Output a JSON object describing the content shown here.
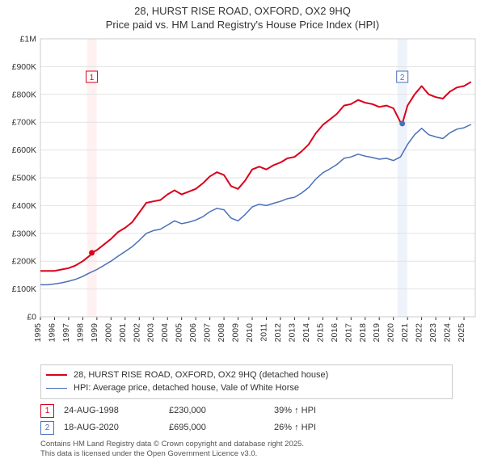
{
  "title_line1": "28, HURST RISE ROAD, OXFORD, OX2 9HQ",
  "title_line2": "Price paid vs. HM Land Registry's House Price Index (HPI)",
  "chart": {
    "type": "line",
    "background_color": "#ffffff",
    "plot_border_color": "#cccccc",
    "grid_color": "#e2e2e2",
    "axis_color": "#333333",
    "xlim": [
      1995,
      2025.8
    ],
    "ylim": [
      0,
      1000000
    ],
    "ytick_step": 100000,
    "ytick_labels": [
      "£0",
      "£100K",
      "£200K",
      "£300K",
      "£400K",
      "£500K",
      "£600K",
      "£700K",
      "£800K",
      "£900K",
      "£1M"
    ],
    "xtick_step": 1,
    "xtick_labels": [
      "1995",
      "1996",
      "1997",
      "1998",
      "1999",
      "2000",
      "2001",
      "2002",
      "2003",
      "2004",
      "2005",
      "2006",
      "2007",
      "2008",
      "2009",
      "2010",
      "2011",
      "2012",
      "2013",
      "2014",
      "2015",
      "2016",
      "2017",
      "2018",
      "2019",
      "2020",
      "2021",
      "2022",
      "2023",
      "2024",
      "2025"
    ],
    "tick_fontsize": 10.5,
    "series": [
      {
        "name": "price_paid",
        "label": "28, HURST RISE ROAD, OXFORD, OX2 9HQ (detached house)",
        "color": "#d9001c",
        "line_width": 2,
        "x": [
          1995,
          1995.5,
          1996,
          1996.5,
          1997,
          1997.5,
          1998,
          1998.5,
          1998.64,
          1999,
          1999.5,
          2000,
          2000.5,
          2001,
          2001.5,
          2002,
          2002.5,
          2003,
          2003.5,
          2004,
          2004.5,
          2005,
          2005.5,
          2006,
          2006.5,
          2007,
          2007.5,
          2008,
          2008.5,
          2009,
          2009.5,
          2010,
          2010.5,
          2011,
          2011.5,
          2012,
          2012.5,
          2013,
          2013.5,
          2014,
          2014.5,
          2015,
          2015.5,
          2016,
          2016.5,
          2017,
          2017.5,
          2018,
          2018.5,
          2019,
          2019.5,
          2020,
          2020.5,
          2020.63,
          2021,
          2021.5,
          2022,
          2022.5,
          2023,
          2023.5,
          2024,
          2024.5,
          2025,
          2025.5
        ],
        "y": [
          165000,
          165000,
          165000,
          170000,
          175000,
          185000,
          200000,
          220000,
          230000,
          240000,
          260000,
          280000,
          305000,
          320000,
          340000,
          375000,
          410000,
          415000,
          420000,
          440000,
          455000,
          440000,
          450000,
          460000,
          480000,
          505000,
          520000,
          510000,
          470000,
          460000,
          490000,
          530000,
          540000,
          530000,
          545000,
          555000,
          570000,
          575000,
          595000,
          620000,
          660000,
          690000,
          710000,
          730000,
          760000,
          765000,
          780000,
          770000,
          765000,
          755000,
          760000,
          750000,
          700000,
          695000,
          760000,
          800000,
          830000,
          800000,
          790000,
          785000,
          810000,
          825000,
          830000,
          845000
        ]
      },
      {
        "name": "hpi",
        "label": "HPI: Average price, detached house, Vale of White Horse",
        "color": "#4b70b7",
        "line_width": 1.5,
        "x": [
          1995,
          1995.5,
          1996,
          1996.5,
          1997,
          1997.5,
          1998,
          1998.5,
          1999,
          1999.5,
          2000,
          2000.5,
          2001,
          2001.5,
          2002,
          2002.5,
          2003,
          2003.5,
          2004,
          2004.5,
          2005,
          2005.5,
          2006,
          2006.5,
          2007,
          2007.5,
          2008,
          2008.5,
          2009,
          2009.5,
          2010,
          2010.5,
          2011,
          2011.5,
          2012,
          2012.5,
          2013,
          2013.5,
          2014,
          2014.5,
          2015,
          2015.5,
          2016,
          2016.5,
          2017,
          2017.5,
          2018,
          2018.5,
          2019,
          2019.5,
          2020,
          2020.5,
          2021,
          2021.5,
          2022,
          2022.5,
          2023,
          2023.5,
          2024,
          2024.5,
          2025,
          2025.5
        ],
        "y": [
          115000,
          115000,
          118000,
          122000,
          128000,
          135000,
          145000,
          158000,
          170000,
          185000,
          200000,
          218000,
          235000,
          252000,
          275000,
          300000,
          310000,
          315000,
          330000,
          345000,
          335000,
          340000,
          348000,
          360000,
          378000,
          390000,
          385000,
          355000,
          345000,
          368000,
          395000,
          405000,
          400000,
          408000,
          415000,
          425000,
          430000,
          445000,
          465000,
          495000,
          518000,
          532000,
          548000,
          570000,
          575000,
          585000,
          578000,
          573000,
          567000,
          570000,
          562000,
          575000,
          620000,
          655000,
          678000,
          655000,
          647000,
          641000,
          662000,
          675000,
          680000,
          692000
        ]
      }
    ],
    "sale_markers": [
      {
        "n": 1,
        "x": 1998.64,
        "y": 230000,
        "band_color": "#fff1f1",
        "border_color": "#d9001c"
      },
      {
        "n": 2,
        "x": 2020.63,
        "y": 695000,
        "band_color": "#eef3fb",
        "border_color": "#4b70b7"
      }
    ]
  },
  "legend": {
    "items": [
      {
        "color": "#d9001c",
        "width": 2,
        "label": "28, HURST RISE ROAD, OXFORD, OX2 9HQ (detached house)"
      },
      {
        "color": "#4b70b7",
        "width": 1.5,
        "label": "HPI: Average price, detached house, Vale of White Horse"
      }
    ]
  },
  "sales": [
    {
      "n": "1",
      "border_color": "#d9001c",
      "date": "24-AUG-1998",
      "price": "£230,000",
      "hpi_diff": "39% ↑ HPI"
    },
    {
      "n": "2",
      "border_color": "#4b70b7",
      "date": "18-AUG-2020",
      "price": "£695,000",
      "hpi_diff": "26% ↑ HPI"
    }
  ],
  "footer_line1": "Contains HM Land Registry data © Crown copyright and database right 2025.",
  "footer_line2": "This data is licensed under the Open Government Licence v3.0."
}
